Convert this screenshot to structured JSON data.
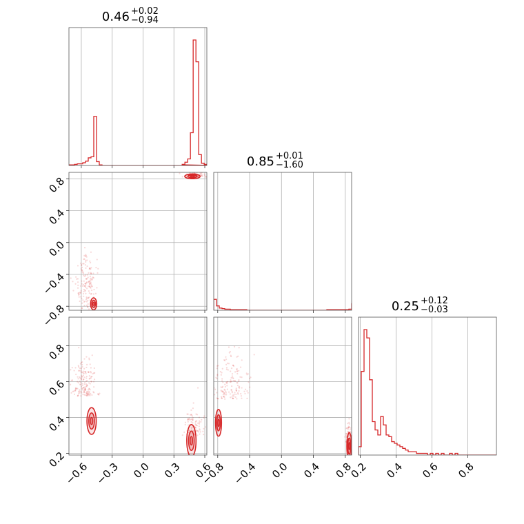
{
  "chart_data": {
    "type": "corner",
    "color": "#d62728",
    "parameters": [
      {
        "index": 0,
        "range": [
          -0.72,
          0.62
        ],
        "ticks": [
          "−0.6",
          "−0.3",
          "0.0",
          "0.3",
          "0.6"
        ],
        "tick_values": [
          -0.6,
          -0.3,
          0.0,
          0.3,
          0.6
        ]
      },
      {
        "index": 1,
        "range": [
          -0.85,
          0.88
        ],
        "ticks": [
          "−0.8",
          "−0.4",
          "0.0",
          "0.4",
          "0.8"
        ],
        "tick_values": [
          -0.8,
          -0.4,
          0.0,
          0.4,
          0.8
        ]
      },
      {
        "index": 2,
        "range": [
          0.19,
          0.96
        ],
        "ticks": [
          "0.2",
          "0.4",
          "0.6",
          "0.8"
        ],
        "tick_values": [
          0.2,
          0.4,
          0.6,
          0.8
        ]
      }
    ],
    "titles": [
      {
        "value": "0.46",
        "plus": "+0.02",
        "minus": "−0.94"
      },
      {
        "value": "0.85",
        "plus": "+0.01",
        "minus": "−1.60"
      },
      {
        "value": "0.25",
        "plus": "+0.12",
        "minus": "−0.03"
      }
    ],
    "histograms": [
      {
        "edges_start": -0.72,
        "edges_step": 0.0268,
        "counts": [
          1,
          1,
          2,
          3,
          3,
          5,
          8,
          14,
          16,
          90,
          7,
          1,
          0,
          0,
          0,
          0,
          0,
          0,
          0,
          0,
          0,
          0,
          0,
          0,
          0,
          0,
          0,
          0,
          0,
          0,
          0,
          0,
          0,
          0,
          0,
          0,
          0,
          0,
          0,
          0,
          0,
          0,
          0,
          0,
          0,
          0,
          0,
          0,
          0,
          0,
          0,
          0
        ]
      },
      {
        "edges_start": -0.85,
        "edges_step": 0.0346,
        "counts": [
          20,
          8,
          4,
          3,
          2,
          2,
          1,
          1,
          1,
          1,
          1,
          1,
          0,
          0,
          0,
          0,
          0,
          0,
          0,
          0,
          0,
          0,
          0,
          0,
          0,
          0,
          0,
          0,
          0,
          0,
          0,
          0,
          0,
          0,
          0,
          0,
          0,
          0,
          0,
          0,
          0,
          1,
          1,
          1,
          1,
          1,
          1,
          1,
          1,
          2,
          12,
          230
        ]
      },
      {
        "edges_start": 0.19,
        "edges_step": 0.0154,
        "counts": [
          5,
          50,
          75,
          70,
          45,
          20,
          15,
          12,
          23,
          18,
          12,
          11,
          8,
          7,
          6,
          5,
          4,
          3,
          2,
          2,
          2,
          1,
          1,
          1,
          1,
          0,
          1,
          0,
          1,
          0,
          1,
          0,
          0,
          1,
          0,
          1,
          0,
          0,
          0,
          0,
          0,
          0,
          0,
          0,
          0,
          0,
          0,
          0,
          0,
          0
        ]
      }
    ],
    "hist0_right_peak": {
      "edges_start": 0.38,
      "edges_step": 0.0268,
      "counts": [
        2,
        6,
        12,
        60,
        230,
        190,
        20,
        4,
        2,
        1
      ]
    },
    "clusters": [
      {
        "pair": [
          1,
          0
        ],
        "points": [
          [
            -0.55,
            -0.55,
            0.05,
            0.2,
            160
          ],
          [
            0.5,
            0.82,
            0.06,
            0.04,
            90
          ]
        ],
        "contours": [
          [
            -0.48,
            -0.77,
            0.02,
            0.05
          ],
          [
            0.48,
            0.83,
            0.05,
            0.02
          ]
        ]
      },
      {
        "pair": [
          2,
          0
        ],
        "points": [
          [
            -0.58,
            0.52,
            0.06,
            0.1,
            170
          ],
          [
            0.5,
            0.3,
            0.05,
            0.08,
            90
          ]
        ],
        "contours": [
          [
            -0.5,
            0.38,
            0.03,
            0.05
          ],
          [
            0.47,
            0.27,
            0.03,
            0.06
          ]
        ]
      },
      {
        "pair": [
          2,
          1
        ],
        "points": [
          [
            -0.65,
            0.5,
            0.12,
            0.12,
            160
          ],
          [
            0.84,
            0.26,
            0.02,
            0.05,
            60
          ]
        ],
        "contours": [
          [
            -0.79,
            0.37,
            0.025,
            0.05
          ],
          [
            0.85,
            0.24,
            0.02,
            0.05
          ]
        ]
      }
    ]
  }
}
